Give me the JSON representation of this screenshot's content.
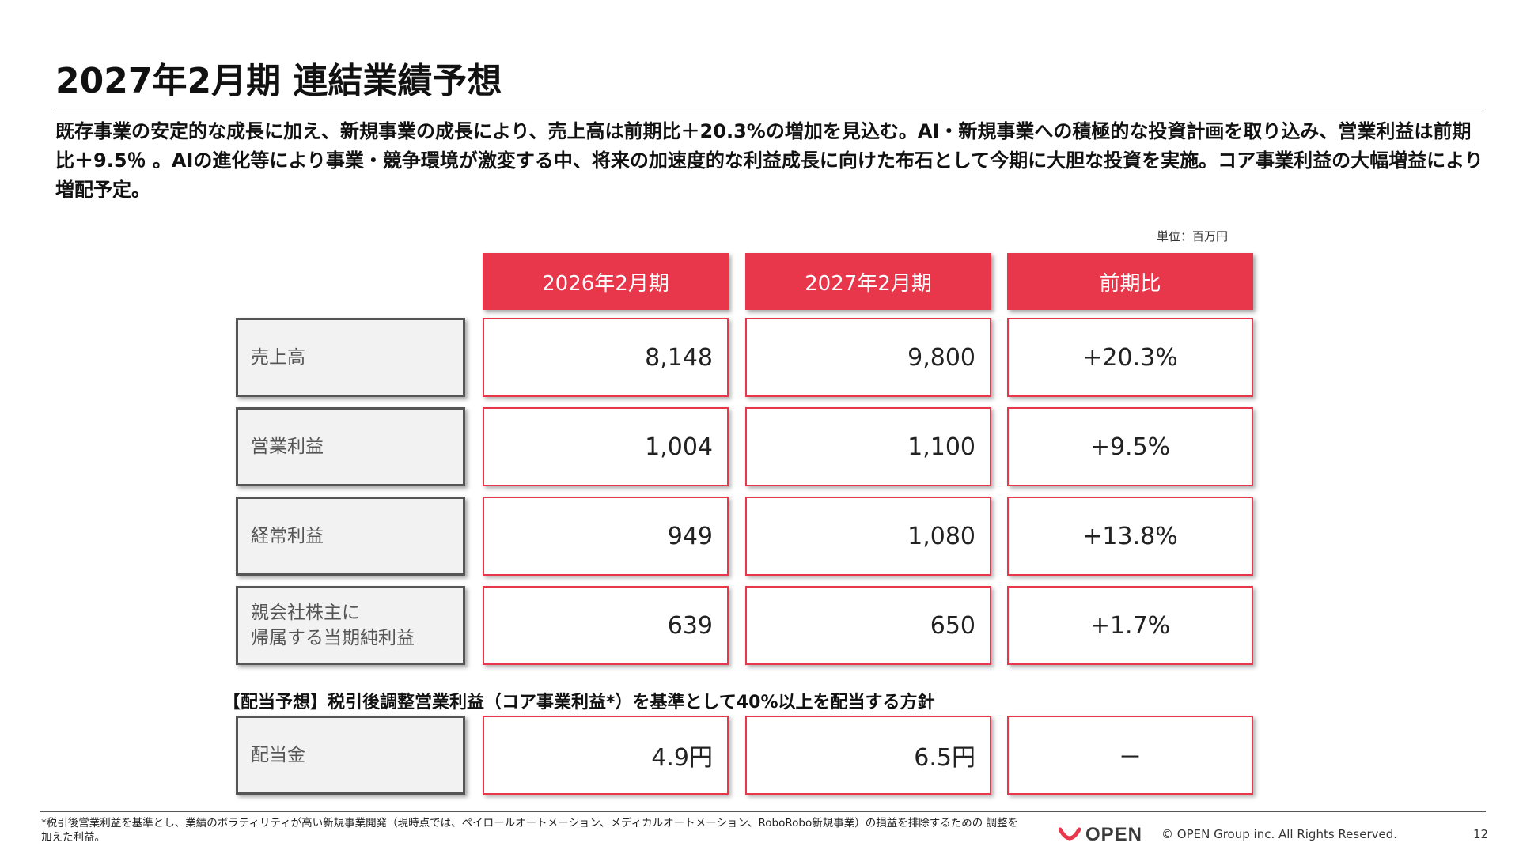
{
  "title": "2027年2月期 連結業績予想",
  "summary": "既存事業の安定的な成長に加え、新規事業の成長により、売上高は前期比＋20.3%の増加を見込む。AI・新規事業への積極的な投資計画を取り込み、営業利益は前期比＋9.5％ 。AIの進化等により事業・競争環境が激変する中、将来の加速度的な利益成長に向けた布石として今期に大胆な投資を実施。コア事業利益の大幅増益により増配予定。",
  "unit": "単位：百万円",
  "table": {
    "headers": [
      "2026年2月期",
      "2027年2月期",
      "前期比"
    ],
    "rows": [
      {
        "label": "売上高",
        "fy2026": "8,148",
        "fy2027": "9,800",
        "ratio": "+20.3%"
      },
      {
        "label": "営業利益",
        "fy2026": "1,004",
        "fy2027": "1,100",
        "ratio": "+9.5%"
      },
      {
        "label": "経常利益",
        "fy2026": "949",
        "fy2027": "1,080",
        "ratio": "+13.8%"
      },
      {
        "label": "親会社株主に\n帰属する当期純利益",
        "fy2026": "639",
        "fy2027": "650",
        "ratio": "+1.7%"
      }
    ]
  },
  "dividend": {
    "note": "【配当予想】税引後調整営業利益（コア事業利益*）を基準として40%以上を配当する方針",
    "label": "配当金",
    "fy2026": "4.9円",
    "fy2027": "6.5円",
    "ratio": "－"
  },
  "footer": {
    "footnote": "*税引後営業利益を基準とし、業績のボラティリティが高い新規事業開発（現時点では、ペイロールオートメーション、メディカルオートメーション、RoboRobo新規事業）の損益を排除するための 調整を加えた利益。",
    "logo_text": "OPEN",
    "copyright": "© OPEN Group inc. All Rights Reserved.",
    "page_number": "12"
  },
  "colors": {
    "accent": "#e8364a",
    "label_bg": "#f2f2f2",
    "label_border": "#555555"
  }
}
